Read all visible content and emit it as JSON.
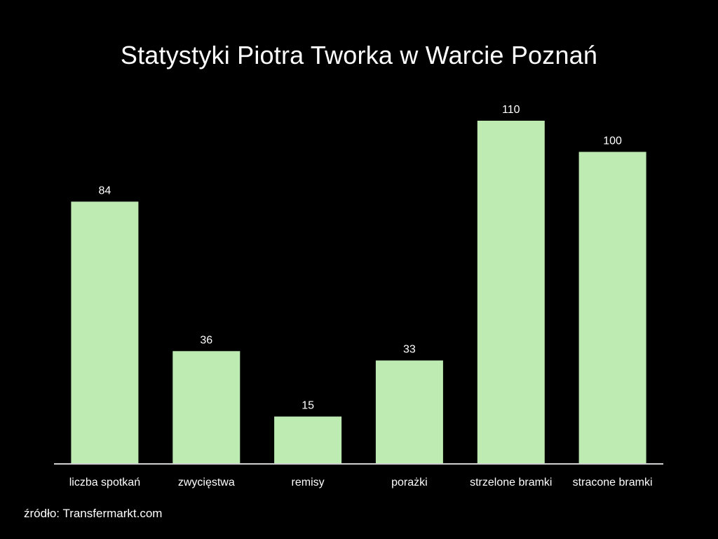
{
  "chart_data": {
    "type": "bar",
    "title": "Statystyki Piotra Tworka w Warcie Poznań",
    "categories": [
      "liczba spotkań",
      "zwycięstwa",
      "remisy",
      "porażki",
      "strzelone bramki",
      "stracone bramki"
    ],
    "values": [
      84,
      36,
      15,
      33,
      110,
      100
    ],
    "xlabel": "",
    "ylabel": "",
    "ylim": [
      0,
      110
    ],
    "grid": false,
    "legend": "none",
    "bar_color": "#bdebb1",
    "axis_color": "#cfcfcf",
    "background": "#000000"
  },
  "source": "źródło: Transfermarkt.com"
}
